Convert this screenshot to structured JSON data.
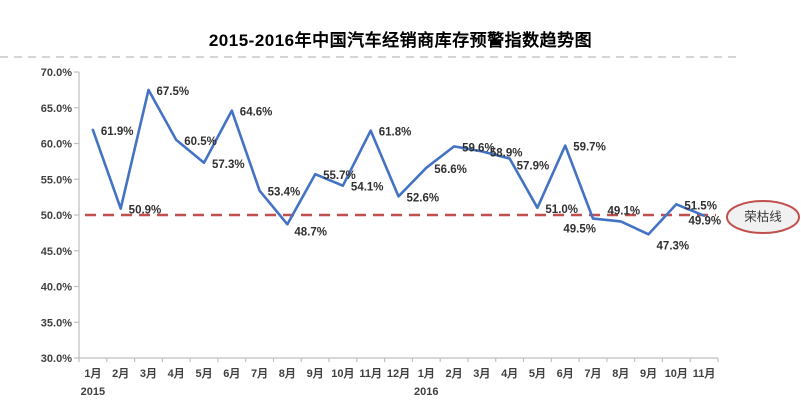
{
  "chart_data": {
    "type": "line",
    "title": "2015-2016年中国汽车经销商库存预警指数趋势图",
    "categories": [
      "1月",
      "2月",
      "3月",
      "4月",
      "5月",
      "6月",
      "7月",
      "8月",
      "9月",
      "10月",
      "11月",
      "12月",
      "1月",
      "2月",
      "3月",
      "4月",
      "5月",
      "6月",
      "7月",
      "8月",
      "9月",
      "10月",
      "11月"
    ],
    "year_markers": [
      {
        "label": "2015",
        "category_index": 0
      },
      {
        "label": "2016",
        "category_index": 12
      }
    ],
    "series": [
      {
        "name": "库存预警指数",
        "color": "#4472C4",
        "values": [
          61.9,
          50.9,
          67.5,
          60.5,
          57.3,
          64.6,
          53.4,
          48.7,
          55.7,
          54.1,
          61.8,
          52.6,
          56.6,
          59.6,
          58.9,
          57.9,
          51.0,
          59.7,
          49.5,
          49.1,
          47.3,
          51.5,
          49.9
        ]
      }
    ],
    "data_labels": [
      "61.9%",
      "50.9%",
      "67.5%",
      "60.5%",
      "57.3%",
      "64.6%",
      "53.4%",
      "48.7%",
      "55.7%",
      "54.1%",
      "61.8%",
      "52.6%",
      "56.6%",
      "59.6%",
      "58.9%",
      "57.9%",
      "51.0%",
      "59.7%",
      "49.5%",
      "49.1%",
      "47.3%",
      "51.5%",
      "49.9%"
    ],
    "label_placements": [
      "r",
      "r",
      "r",
      "r",
      "r",
      "r",
      "r",
      "rb",
      "r",
      "r",
      "r",
      "r",
      "r",
      "r",
      "r",
      "rb",
      "r",
      "r",
      "bl",
      "a",
      "br",
      "r",
      "lb"
    ],
    "ylim": [
      30,
      70
    ],
    "ytick_labels": [
      "70.0%",
      "65.0%",
      "60.0%",
      "55.0%",
      "50.0%",
      "45.0%",
      "40.0%",
      "35.0%",
      "30.0%"
    ],
    "reference_line": {
      "value": 50.0,
      "label": "荣枯线",
      "color": "#C0504D",
      "style": "dashed"
    },
    "grid": false,
    "legend": "none",
    "axis_color": "#BFBFBF",
    "axis_text_color": "#3F3F3F",
    "data_label_color": "#303030",
    "separator_color": "#C8C8C8",
    "annotation_fill": "#F1F1F1"
  }
}
